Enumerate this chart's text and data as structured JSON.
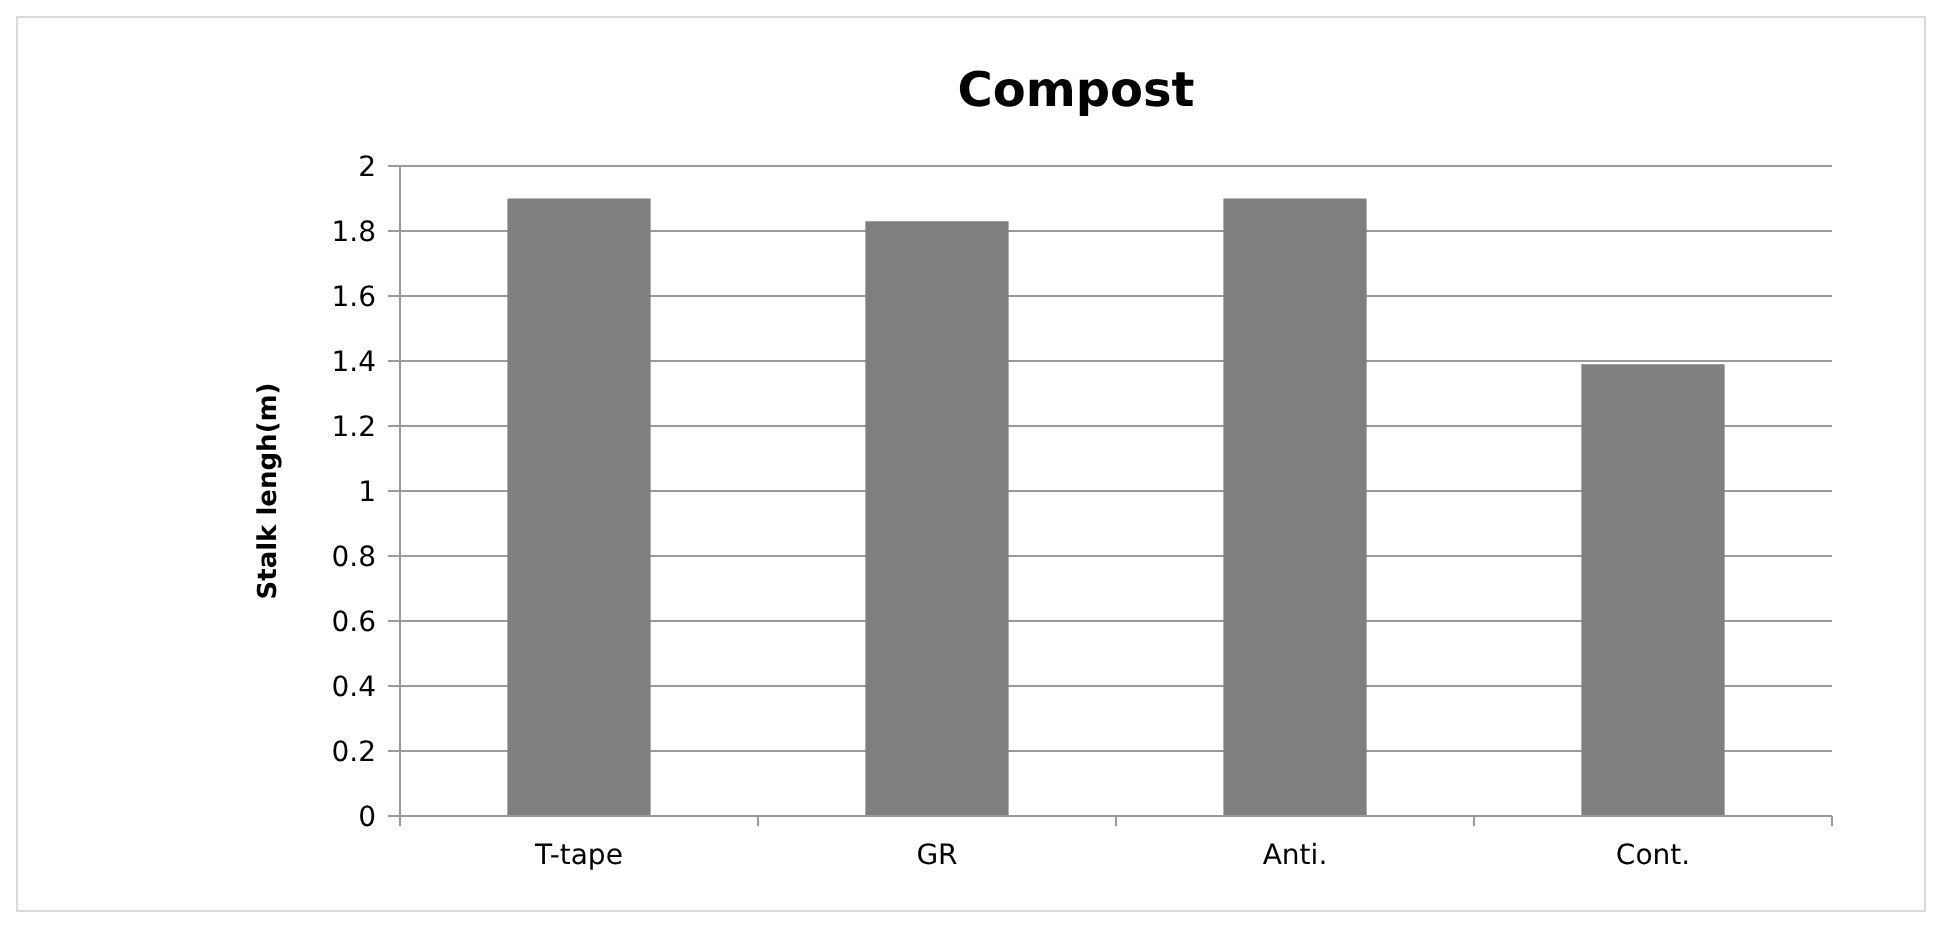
{
  "chart_data": {
    "type": "bar",
    "title": "Compost",
    "ylabel": "Stalk lengh(m)",
    "categories": [
      "T-tape",
      "GR",
      "Anti.",
      "Cont."
    ],
    "values": [
      1.9,
      1.83,
      1.9,
      1.39
    ],
    "color": "#7f7f7f",
    "ylim": [
      0,
      2
    ],
    "yticks": [
      0,
      {
        "value": 0.2,
        "label": "0.2"
      },
      {
        "value": 0.4,
        "label": "0.4"
      },
      {
        "value": 0.6,
        "label": "0.6"
      },
      {
        "value": 0.8,
        "label": "0.8"
      },
      1,
      {
        "value": 1.2,
        "label": "1.2"
      },
      {
        "value": 1.4,
        "label": "1.4"
      },
      {
        "value": 1.6,
        "label": "1.6"
      },
      {
        "value": 1.8,
        "label": "1.8"
      },
      2
    ],
    "grid": "y"
  }
}
